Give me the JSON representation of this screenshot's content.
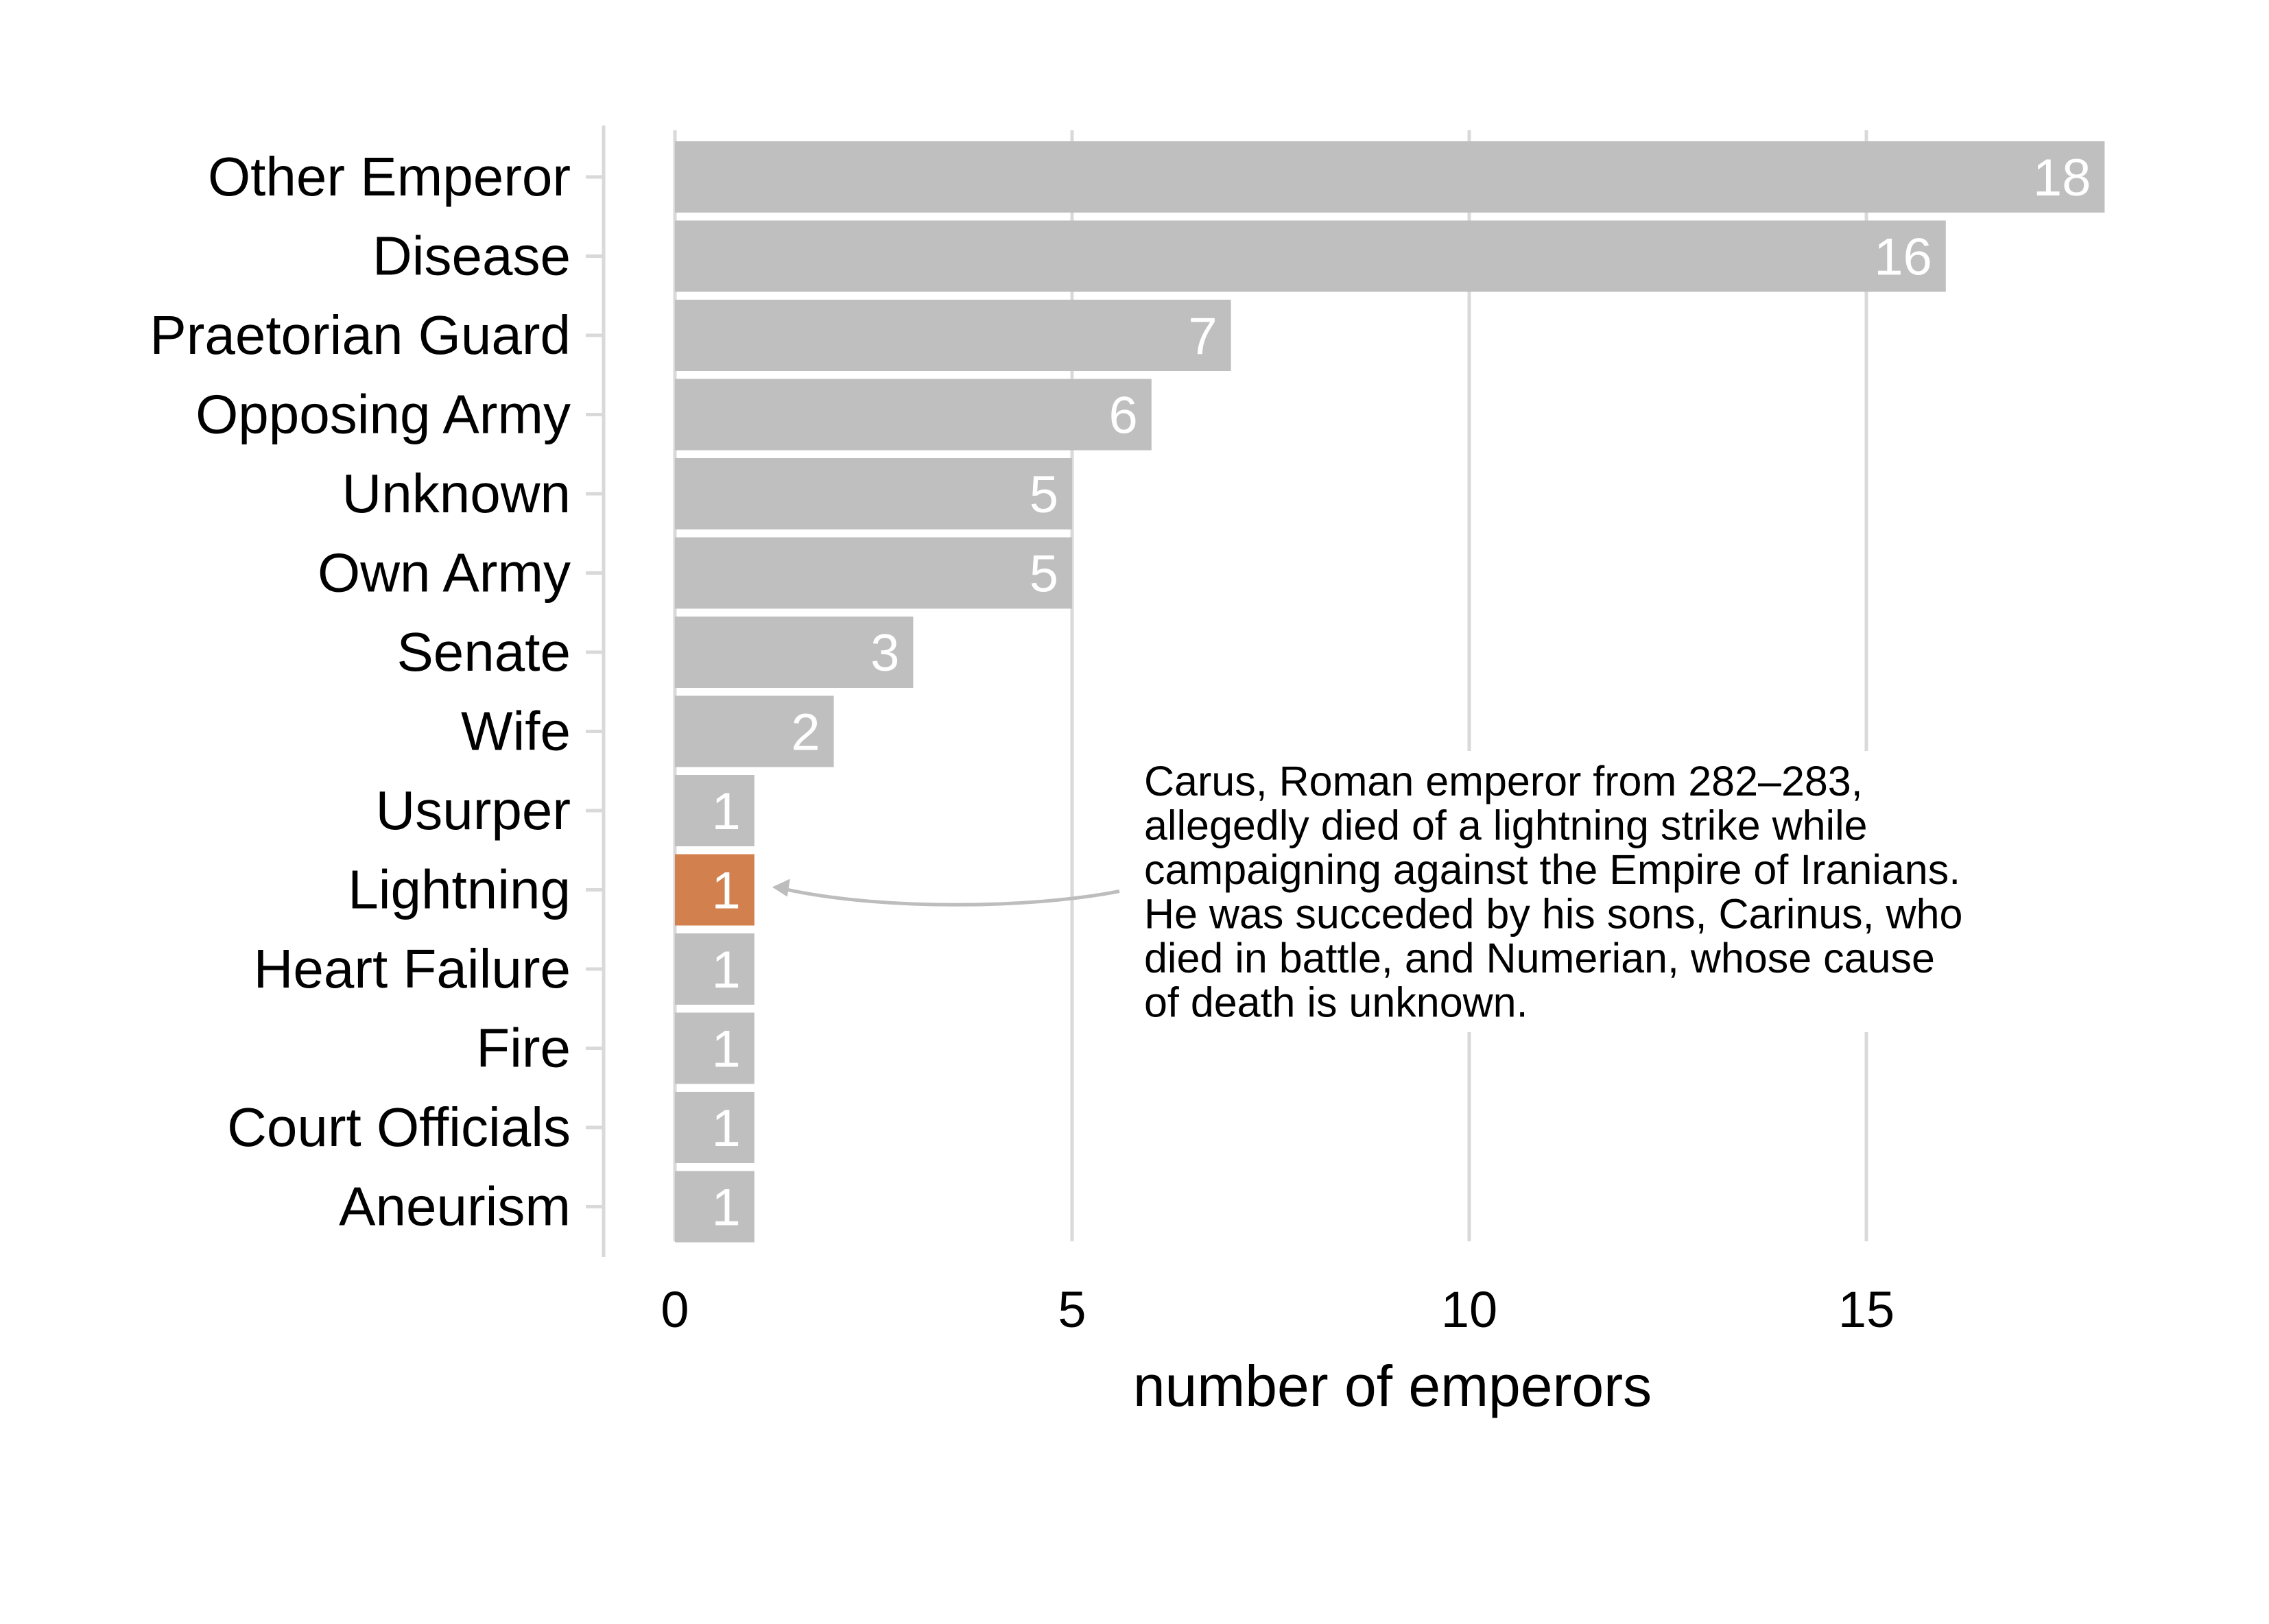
{
  "chart_data": {
    "type": "bar",
    "orientation": "horizontal",
    "categories": [
      "Other Emperor",
      "Disease",
      "Praetorian Guard",
      "Opposing Army",
      "Unknown",
      "Own Army",
      "Senate",
      "Wife",
      "Usurper",
      "Lightning",
      "Heart Failure",
      "Fire",
      "Court Officials",
      "Aneurism"
    ],
    "values": [
      18,
      16,
      7,
      6,
      5,
      5,
      3,
      2,
      1,
      1,
      1,
      1,
      1,
      1
    ],
    "highlight": "Lightning",
    "xlabel": "number of emperors",
    "ylabel": "",
    "xlim": [
      0,
      18
    ],
    "xticks": [
      "0",
      "5",
      "10",
      "15"
    ],
    "xtick_values": [
      0,
      5,
      10,
      15
    ],
    "grid": "vertical major gridlines",
    "legend": "none",
    "colors": {
      "bar": "#bfbfbf",
      "highlight": "#d2804d",
      "bar_label": "#ffffff",
      "grid": "#d9d9d9",
      "axis": "#d9d9d9",
      "text": "#000000",
      "arrow": "#bdbdbd"
    },
    "annotation": {
      "target": "Lightning",
      "lines": [
        "Carus, Roman emperor from 282–283,",
        "allegedly died of a lightning strike while",
        "campaigning against the Empire of Iranians.",
        "He was succeded by his sons, Carinus, who",
        "died in battle, and Numerian, whose cause",
        "of death is unknown."
      ]
    }
  }
}
